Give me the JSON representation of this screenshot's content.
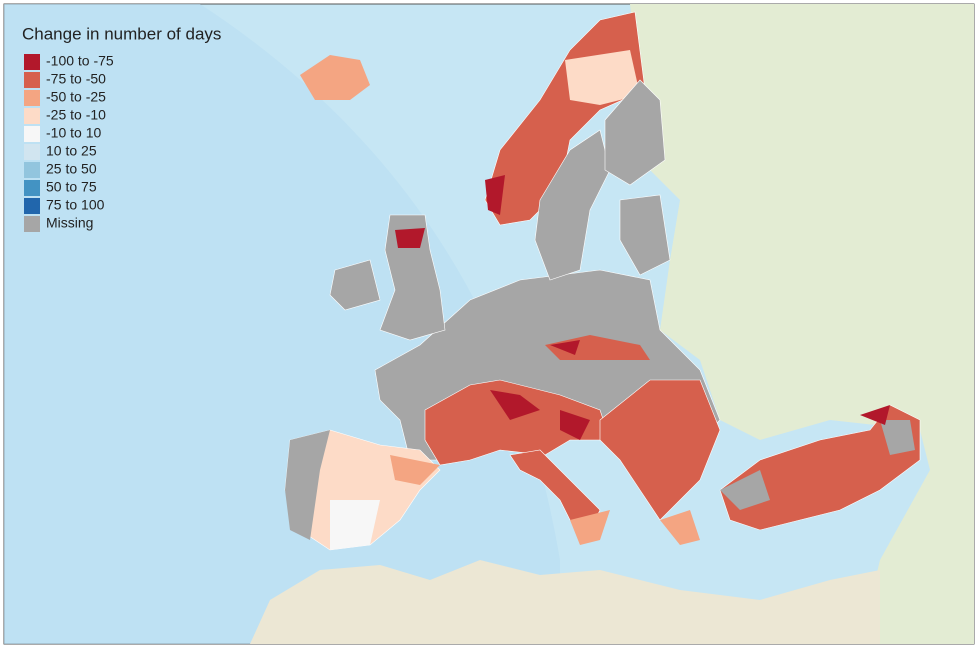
{
  "legend": {
    "title": "Change in number of days",
    "items": [
      {
        "label": "-100 to -75",
        "color": "#b2182b"
      },
      {
        "label": "-75 to -50",
        "color": "#d6604d"
      },
      {
        "label": "-50 to -25",
        "color": "#f4a582"
      },
      {
        "label": "-25 to -10",
        "color": "#fddbc7"
      },
      {
        "label": "-10 to 10",
        "color": "#f7f7f7"
      },
      {
        "label": "10 to 25",
        "color": "#d1e5f0"
      },
      {
        "label": "25 to 50",
        "color": "#92c5de"
      },
      {
        "label": "50 to 75",
        "color": "#4393c3"
      },
      {
        "label": "75 to 100",
        "color": "#2166ac"
      },
      {
        "label": "Missing",
        "color": "#a6a6a6"
      }
    ]
  }
}
